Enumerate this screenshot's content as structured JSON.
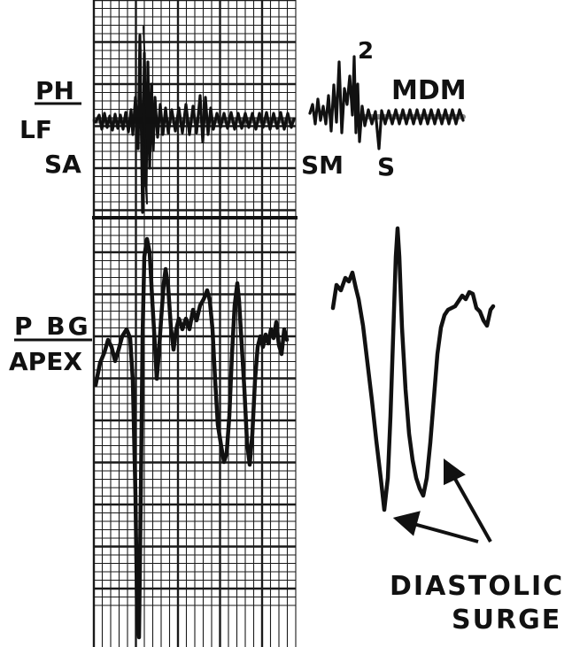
{
  "labels": {
    "ph": "PH",
    "lf": "LF",
    "sa": "SA",
    "second_sound": "2",
    "mdm": "MDM",
    "sm": "SM",
    "s": "S",
    "pbg": "P BG",
    "apex": "APEX",
    "diastolic": "DIASTOLIC",
    "surge": "SURGE"
  },
  "colors": {
    "ink": "#111111",
    "grid": "#1a1a1a",
    "paper": "#ffffff"
  }
}
